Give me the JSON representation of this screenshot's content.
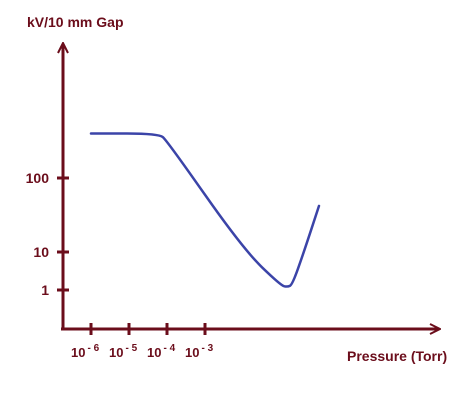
{
  "chart_data": {
    "type": "line",
    "ylabel": "kV/10 mm Gap",
    "xlabel": "Pressure (Torr)",
    "x_scale": "log",
    "y_scale": "log",
    "x_ticks": [
      {
        "value": 1e-06,
        "base": "10",
        "exp": "- 6"
      },
      {
        "value": 1e-05,
        "base": "10",
        "exp": "- 5"
      },
      {
        "value": 0.0001,
        "base": "10",
        "exp": "- 4"
      },
      {
        "value": 0.001,
        "base": "10",
        "exp": "- 3"
      }
    ],
    "y_ticks": [
      {
        "value": 1,
        "label": "1"
      },
      {
        "value": 10,
        "label": "10"
      },
      {
        "value": 100,
        "label": "100"
      }
    ],
    "series": [
      {
        "color": "#3b44a8",
        "points": [
          [
            1e-06,
            400
          ],
          [
            6e-05,
            400
          ],
          [
            0.0001,
            320
          ],
          [
            0.01,
            11
          ],
          [
            0.1,
            1.3
          ],
          [
            0.15,
            1.2
          ],
          [
            0.2,
            1.4
          ],
          [
            0.4,
            10
          ],
          [
            1,
            42
          ]
        ]
      }
    ],
    "axis_color": "#6b0d1b",
    "grid": false,
    "legend": "none"
  }
}
